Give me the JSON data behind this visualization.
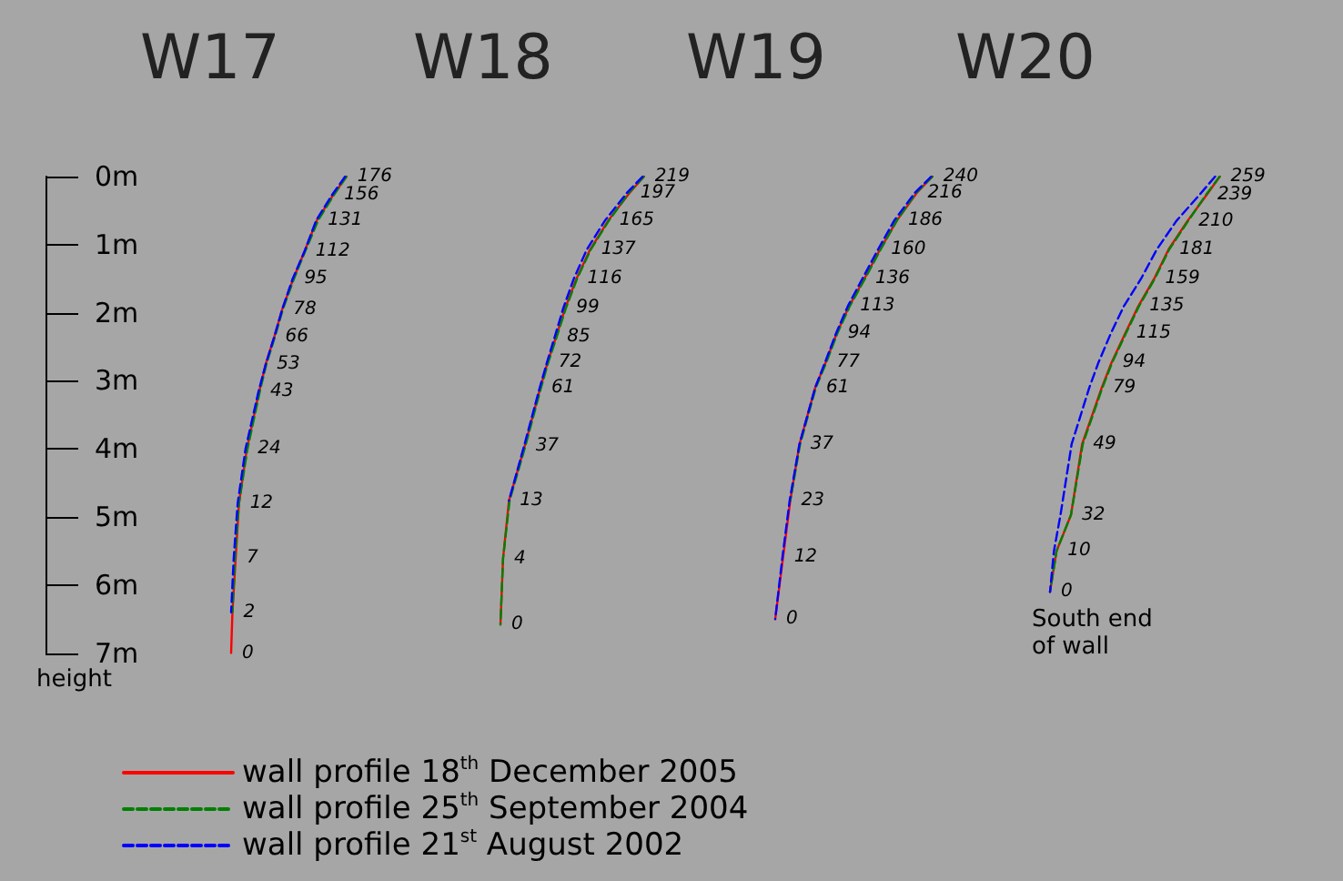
{
  "chart_data": [
    {
      "type": "line",
      "orientation": "horizontal",
      "title": "W17",
      "ylabel": "height",
      "ylim": [
        7,
        0
      ],
      "yticks": [
        {
          "value": 0,
          "label": "0m"
        },
        {
          "value": 1,
          "label": "1m"
        },
        {
          "value": 2,
          "label": "2m"
        },
        {
          "value": 3,
          "label": "3m"
        },
        {
          "value": 4,
          "label": "4m"
        },
        {
          "value": 5,
          "label": "5m"
        },
        {
          "value": 6,
          "label": "6m"
        },
        {
          "value": 7,
          "label": "7m"
        }
      ],
      "tick_labels": "y",
      "grid": false,
      "legend": "bottom",
      "series": [
        {
          "name": "wall profile 18$^{th}$ December 2005",
          "color": "#ff0000",
          "line_style": "solid",
          "x": [
            0,
            0.27,
            0.64,
            1.1,
            1.5,
            1.95,
            2.35,
            2.75,
            3.15,
            4.0,
            4.8,
            5.6,
            6.4,
            7.0
          ],
          "values": [
            176,
            156,
            131,
            112,
            95,
            78,
            66,
            53,
            43,
            24,
            12,
            7,
            2,
            0
          ],
          "data_labels": true
        },
        {
          "name": "wall profile 25$^{th}$ September 2004",
          "color": "#008000",
          "line_style": "dashed",
          "x": [
            0,
            0.27,
            0.64,
            1.1,
            1.5,
            1.95,
            2.35,
            2.75,
            3.15,
            4.0,
            4.8,
            5.6,
            6.4
          ],
          "values": [
            176,
            157,
            133,
            113,
            96,
            79,
            67,
            54,
            44,
            25,
            12,
            6,
            2
          ]
        },
        {
          "name": "wall profile 21$^{st}$ August 2002",
          "color": "#0000ff",
          "line_style": "dashed",
          "x": [
            0,
            0.27,
            0.64,
            1.1,
            1.5,
            1.95,
            2.35,
            2.75,
            3.15,
            4.0,
            4.8,
            5.6,
            6.4
          ],
          "values": [
            174,
            154,
            130,
            112,
            94,
            78,
            66,
            53,
            42,
            22,
            10,
            4,
            0
          ]
        }
      ]
    },
    {
      "type": "line",
      "orientation": "horizontal",
      "title": "W18",
      "ylim": [
        7,
        0
      ],
      "tick_labels": false,
      "grid": false,
      "series": [
        {
          "color": "#ff0000",
          "line_style": "solid",
          "x": [
            0,
            0.24,
            0.64,
            1.07,
            1.5,
            1.93,
            2.35,
            2.73,
            3.1,
            3.96,
            4.76,
            5.61,
            6.58
          ],
          "values": [
            219,
            197,
            165,
            137,
            116,
            99,
            85,
            72,
            61,
            37,
            13,
            4,
            0
          ],
          "data_labels": true
        },
        {
          "color": "#008000",
          "line_style": "dashed",
          "x": [
            0,
            0.24,
            0.64,
            1.07,
            1.5,
            1.93,
            2.35,
            2.73,
            3.1,
            3.96,
            4.76,
            5.61,
            6.58
          ],
          "values": [
            219,
            196,
            166,
            138,
            117,
            100,
            86,
            73,
            62,
            38,
            14,
            4,
            0
          ]
        },
        {
          "color": "#0000ff",
          "line_style": "dashed",
          "x": [
            0,
            0.24,
            0.64,
            1.07,
            1.5,
            1.93,
            2.35,
            2.73,
            3.1,
            3.96,
            4.76
          ],
          "values": [
            217,
            193,
            160,
            132,
            112,
            96,
            83,
            71,
            60,
            36,
            13
          ]
        }
      ]
    },
    {
      "type": "line",
      "orientation": "horizontal",
      "title": "W19",
      "ylim": [
        7,
        0
      ],
      "tick_labels": false,
      "grid": false,
      "series": [
        {
          "color": "#ff0000",
          "line_style": "solid",
          "x": [
            0,
            0.24,
            0.64,
            1.07,
            1.5,
            1.9,
            2.3,
            2.73,
            3.1,
            3.93,
            4.76,
            5.59,
            6.5
          ],
          "values": [
            240,
            216,
            186,
            160,
            136,
            113,
            94,
            77,
            61,
            37,
            23,
            12,
            0
          ],
          "data_labels": true
        },
        {
          "color": "#008000",
          "line_style": "dashed",
          "x": [
            0,
            0.24,
            0.64,
            1.07,
            1.5,
            1.9,
            2.3,
            2.73,
            3.1,
            3.93,
            4.76
          ],
          "values": [
            240,
            215,
            186,
            161,
            137,
            114,
            95,
            78,
            62,
            38,
            23
          ]
        },
        {
          "color": "#0000ff",
          "line_style": "dashed",
          "x": [
            0,
            0.24,
            0.64,
            1.07,
            1.5,
            1.9,
            2.3,
            2.73,
            3.1,
            3.93,
            4.76,
            5.59,
            6.5
          ],
          "values": [
            238,
            213,
            182,
            157,
            133,
            111,
            93,
            76,
            61,
            37,
            22,
            11,
            0
          ]
        }
      ]
    },
    {
      "type": "line",
      "orientation": "horizontal",
      "title": "W20",
      "ylim": [
        7,
        0
      ],
      "tick_labels": false,
      "grid": false,
      "annotations": [
        "South end\nof wall"
      ],
      "series": [
        {
          "color": "#ff0000",
          "line_style": "solid",
          "x": [
            0,
            0.27,
            0.65,
            1.07,
            1.5,
            1.9,
            2.3,
            2.73,
            3.1,
            3.93,
            4.97,
            5.5,
            6.1
          ],
          "values": [
            259,
            239,
            210,
            181,
            159,
            135,
            115,
            94,
            79,
            49,
            32,
            10,
            0
          ],
          "data_labels": true
        },
        {
          "color": "#008000",
          "line_style": "dashed",
          "x": [
            0,
            0.27,
            0.65,
            1.07,
            1.5,
            1.9,
            2.3,
            2.73,
            3.1,
            3.93,
            4.97,
            5.5,
            6.1
          ],
          "values": [
            259,
            238,
            211,
            182,
            160,
            136,
            116,
            95,
            80,
            50,
            32,
            10,
            0
          ]
        },
        {
          "color": "#0000ff",
          "line_style": "dashed",
          "x": [
            0,
            0.27,
            0.65,
            1.07,
            1.5,
            1.9,
            2.3,
            2.73,
            3.1,
            3.93,
            4.97,
            5.5,
            6.1
          ],
          "values": [
            252,
            228,
            193,
            163,
            139,
            113,
            93,
            74,
            60,
            33,
            16,
            6,
            0
          ]
        }
      ]
    }
  ]
}
